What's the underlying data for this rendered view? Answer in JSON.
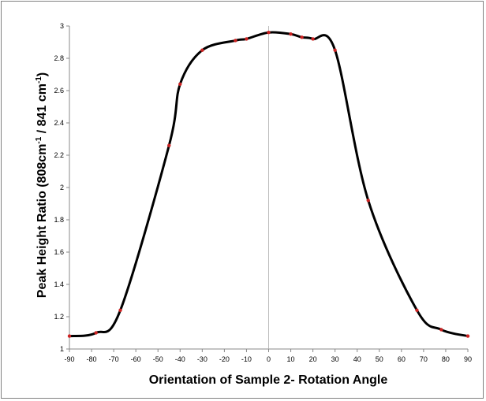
{
  "chart_data": {
    "type": "line",
    "title": "",
    "xlabel": "Orientation of Sample 2- Rotation Angle",
    "ylabel_parts": {
      "main": "Peak Height Ratio (808cm",
      "sup1": "-1",
      "mid": " / 841 cm",
      "sup2": "-1",
      "end": ")"
    },
    "xlim": [
      -90,
      90
    ],
    "ylim": [
      1,
      3
    ],
    "x_ticks": [
      -90,
      -80,
      -70,
      -60,
      -50,
      -40,
      -30,
      -20,
      -10,
      0,
      10,
      20,
      30,
      40,
      50,
      60,
      70,
      80,
      90
    ],
    "y_ticks": [
      1,
      1.2,
      1.4,
      1.6,
      1.8,
      2,
      2.2,
      2.4,
      2.6,
      2.8,
      3
    ],
    "grid": false,
    "legend": "none",
    "series": [
      {
        "line_color": "#000000",
        "marker_color": "#cc2222",
        "x": [
          -90,
          -78,
          -67,
          -45,
          -40,
          -30,
          -15,
          -10,
          0,
          10,
          15,
          20,
          30,
          45,
          67,
          78,
          90
        ],
        "y": [
          1.08,
          1.1,
          1.24,
          2.26,
          2.64,
          2.85,
          2.91,
          2.92,
          2.96,
          2.95,
          2.93,
          2.92,
          2.85,
          1.92,
          1.24,
          1.12,
          1.08
        ]
      }
    ]
  }
}
